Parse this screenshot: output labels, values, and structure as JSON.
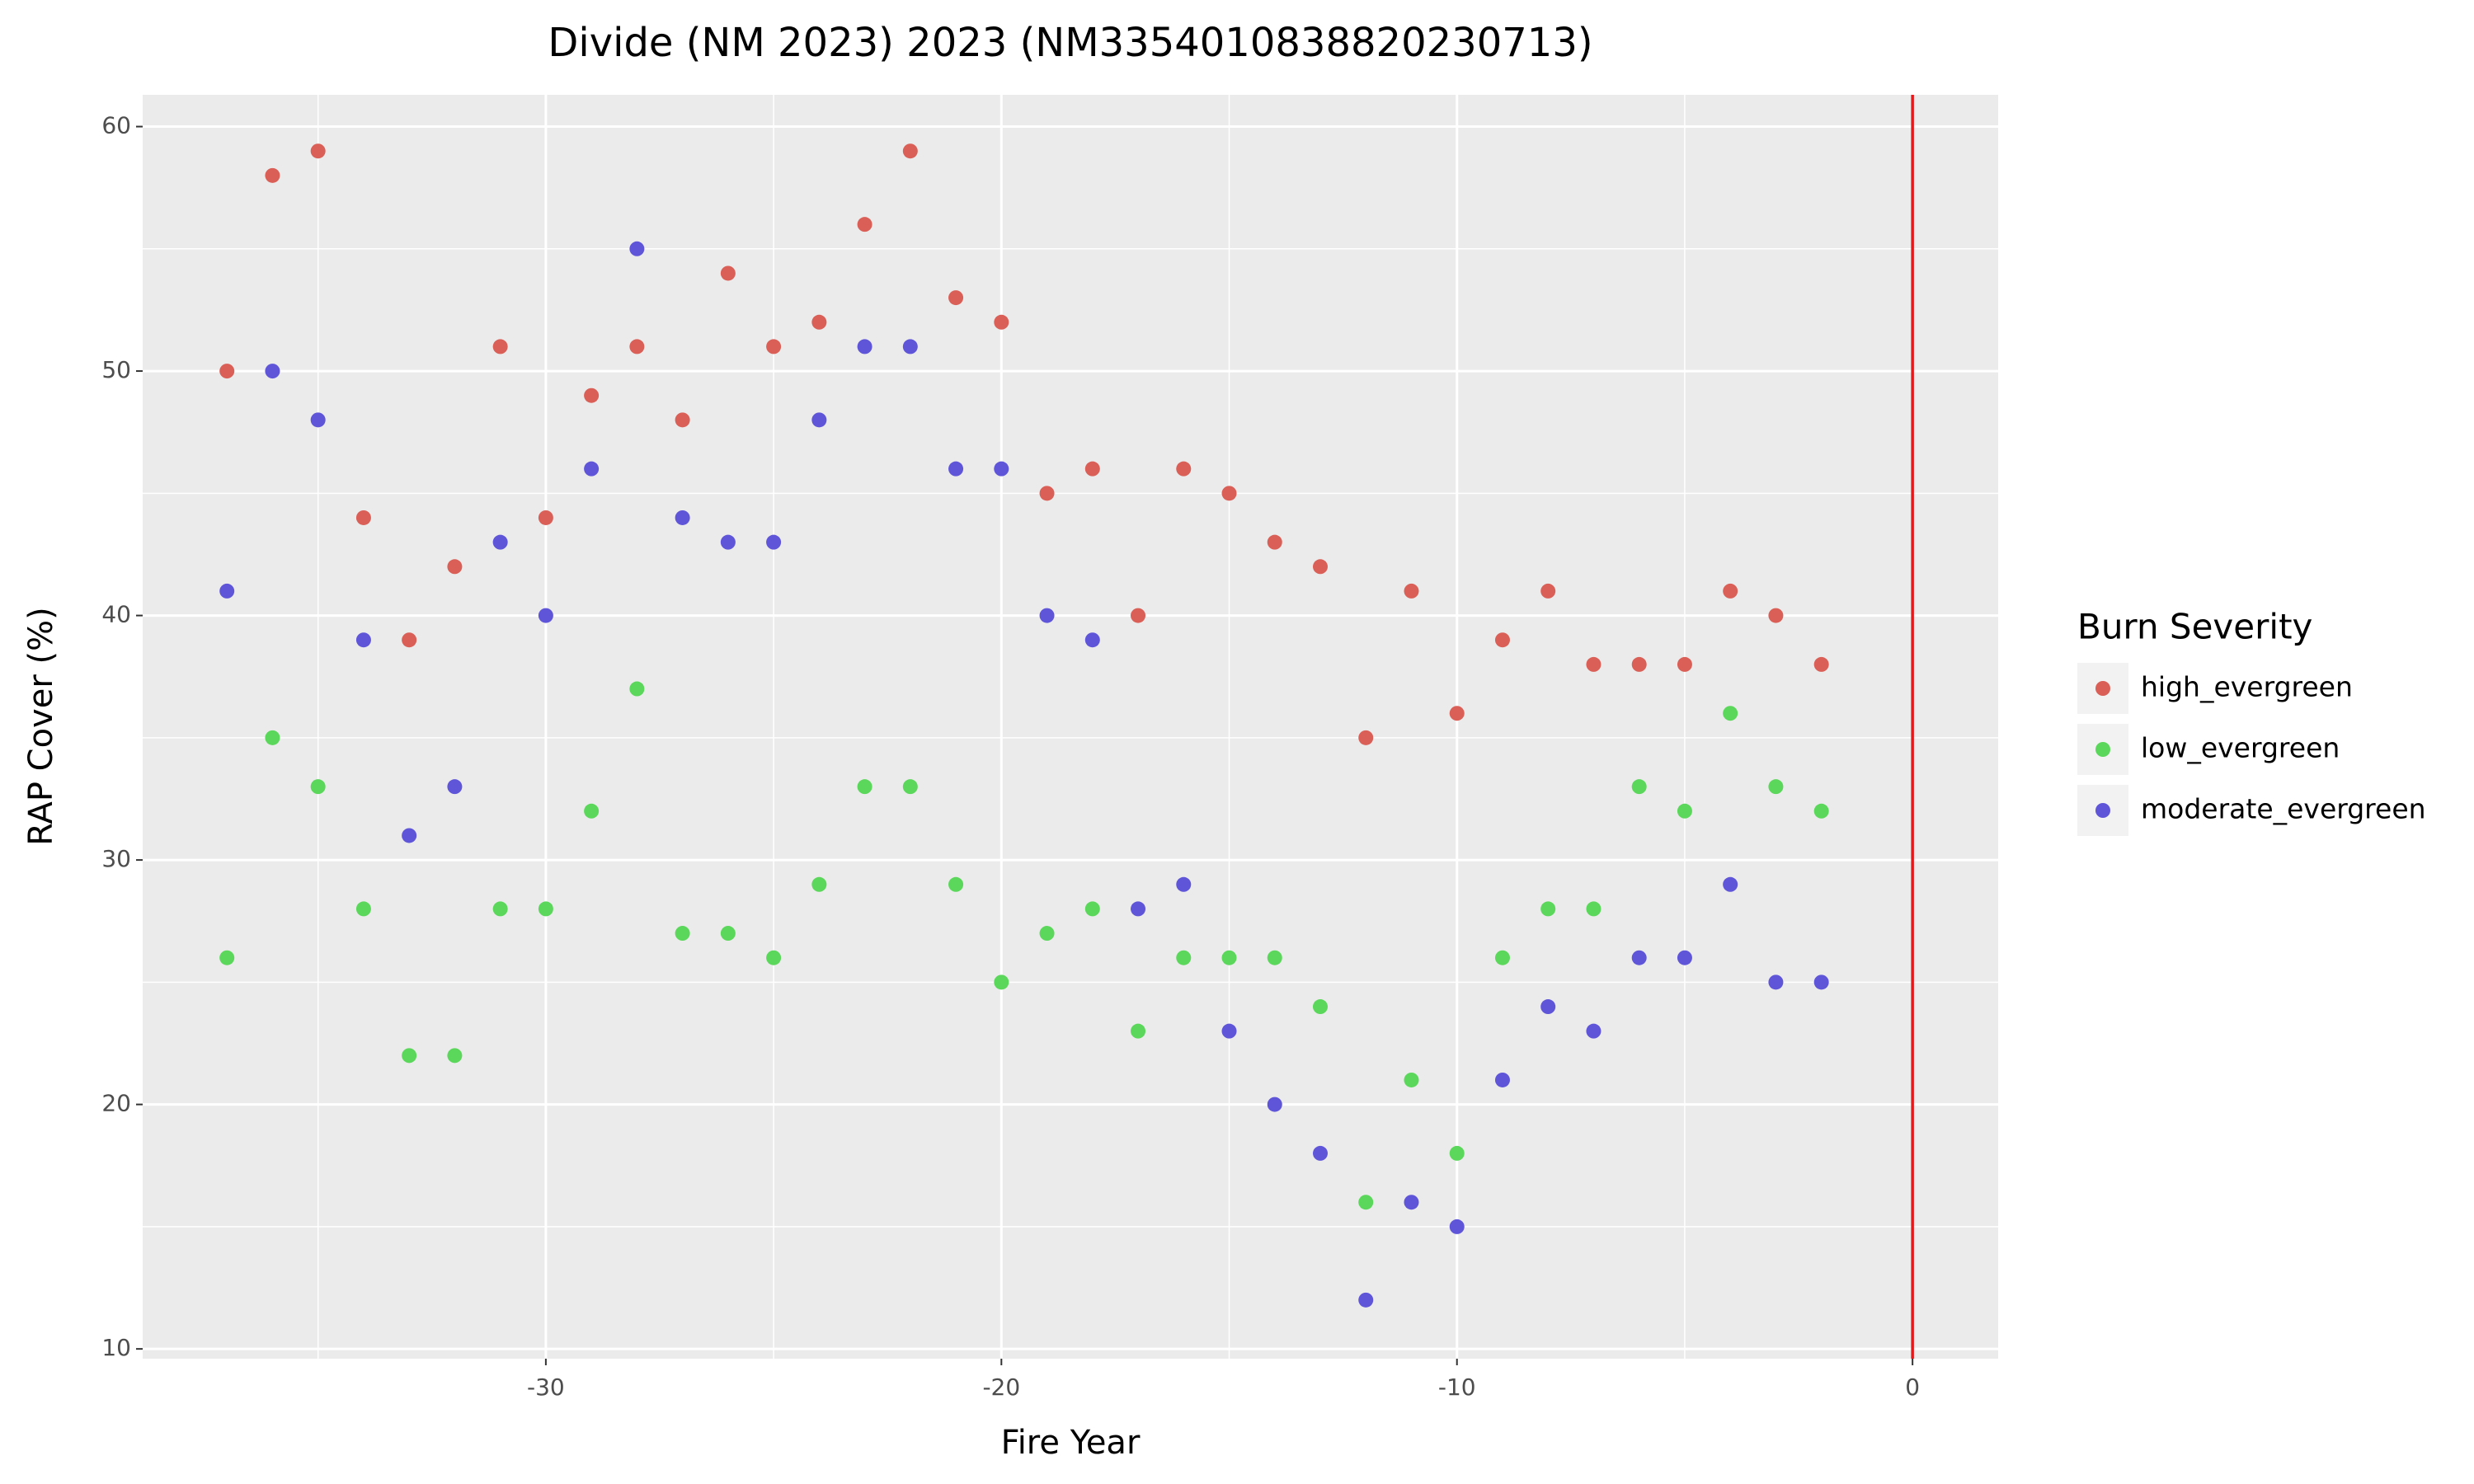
{
  "chart_data": {
    "type": "scatter",
    "title": "Divide (NM 2023) 2023 (NM3354010838820230713)",
    "x_label": "Fire Year",
    "y_label": "RAP Cover (%)",
    "legend_title": "Burn Severity",
    "legend_position": "right",
    "grid": true,
    "xlim": [
      -38.85,
      1.88
    ],
    "ylim": [
      9.6,
      61.3
    ],
    "xticks": [
      -30,
      -20,
      -10,
      0
    ],
    "yticks": [
      10,
      20,
      30,
      40,
      50,
      60
    ],
    "vline": {
      "x": 0,
      "color": "#e31a1c"
    },
    "x": [
      -37,
      -36,
      -35,
      -34,
      -33,
      -32,
      -31,
      -30,
      -29,
      -28,
      -27,
      -26,
      -25,
      -24,
      -23,
      -22,
      -21,
      -20,
      -19,
      -18,
      -17,
      -16,
      -15,
      -14,
      -13,
      -12,
      -11,
      -10,
      -9,
      -8,
      -7,
      -6,
      -5,
      -4,
      -3,
      -2
    ],
    "series": [
      {
        "name": "high_evergreen",
        "color": "#d95f57",
        "values": [
          50,
          58,
          59,
          44,
          39,
          42,
          51,
          44,
          49,
          51,
          48,
          54,
          51,
          52,
          56,
          59,
          53,
          52,
          45,
          46,
          40,
          46,
          45,
          43,
          42,
          35,
          41,
          36,
          39,
          41,
          38,
          38,
          38,
          41,
          40,
          38
        ]
      },
      {
        "name": "low_evergreen",
        "color": "#5bd75b",
        "values": [
          26,
          35,
          33,
          28,
          22,
          22,
          28,
          28,
          32,
          37,
          27,
          27,
          26,
          29,
          33,
          33,
          29,
          25,
          27,
          28,
          23,
          26,
          26,
          26,
          24,
          16,
          21,
          18,
          26,
          28,
          28,
          33,
          32,
          36,
          33,
          32
        ]
      },
      {
        "name": "moderate_evergreen",
        "color": "#5f55d9",
        "values": [
          41,
          50,
          48,
          39,
          31,
          33,
          43,
          40,
          46,
          55,
          44,
          43,
          43,
          48,
          51,
          51,
          46,
          46,
          40,
          39,
          28,
          29,
          23,
          20,
          18,
          12,
          16,
          15,
          21,
          24,
          23,
          26,
          26,
          29,
          25,
          25
        ]
      }
    ]
  }
}
